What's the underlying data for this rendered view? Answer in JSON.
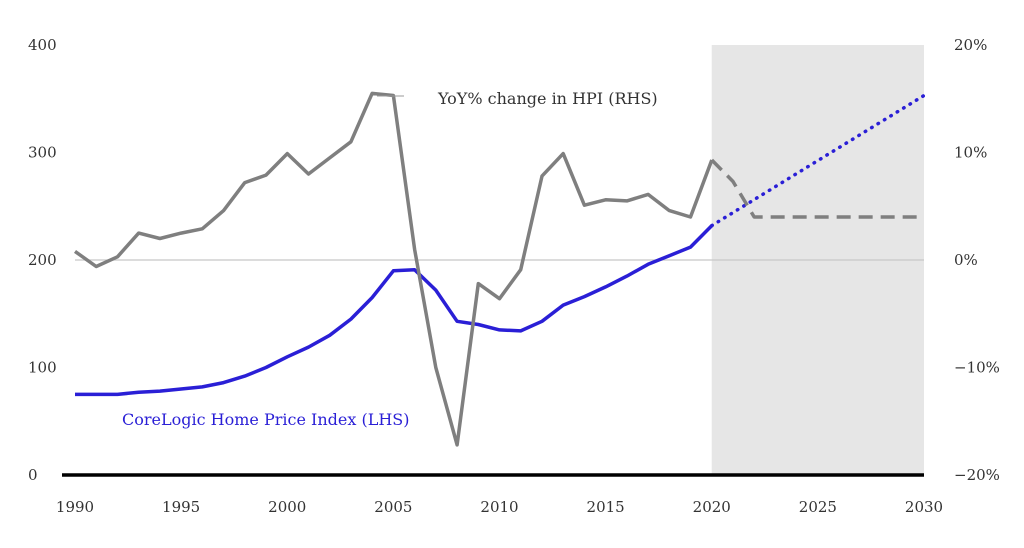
{
  "chart_data": {
    "type": "line",
    "title": "",
    "xlabel": "",
    "ylabel": "",
    "xlim": [
      1990,
      2030
    ],
    "xticks": [
      1990,
      1995,
      2000,
      2005,
      2010,
      2015,
      2020,
      2025,
      2030
    ],
    "xtick_labels": [
      "1990",
      "1995",
      "2000",
      "2005",
      "2010",
      "2015",
      "2020",
      "2025",
      "2030"
    ],
    "left_axis": {
      "ylim": [
        0,
        400
      ],
      "ticks": [
        0,
        100,
        200,
        300,
        400
      ],
      "tick_labels": [
        "0",
        "100",
        "200",
        "300",
        "400"
      ]
    },
    "right_axis": {
      "ylim": [
        -20,
        20
      ],
      "ticks": [
        -20,
        -10,
        0,
        10,
        20
      ],
      "tick_labels": [
        "−20%",
        "−10%",
        "0%",
        "10%",
        "20%"
      ]
    },
    "forecast_region": [
      2020,
      2030
    ],
    "grid": false,
    "zero_line_right_axis": 0,
    "colors": {
      "hpi": "#2a1fd6",
      "yoy": "#7f7f7f",
      "forecast_band": "#e6e6e6",
      "baseline": "#000000",
      "zero_line": "#c8c8c8"
    },
    "series": [
      {
        "name": "CoreLogic Home Price Index (LHS)",
        "axis": "left",
        "style": "solid",
        "x": [
          1990,
          1991,
          1992,
          1993,
          1994,
          1995,
          1996,
          1997,
          1998,
          1999,
          2000,
          2001,
          2002,
          2003,
          2004,
          2005,
          2006,
          2007,
          2008,
          2009,
          2010,
          2011,
          2012,
          2013,
          2014,
          2015,
          2016,
          2017,
          2018,
          2019,
          2020
        ],
        "values": [
          75,
          75,
          75,
          77,
          78,
          80,
          82,
          86,
          92,
          100,
          110,
          119,
          130,
          145,
          165,
          190,
          191,
          172,
          143,
          140,
          135,
          134,
          143,
          158,
          166,
          175,
          185,
          196,
          204,
          212,
          232
        ]
      },
      {
        "name": "CoreLogic Home Price Index (LHS) forecast",
        "axis": "left",
        "style": "dotted",
        "x": [
          2020,
          2030
        ],
        "values": [
          232,
          353
        ]
      },
      {
        "name": "YoY% change in HPI (RHS)",
        "axis": "right",
        "style": "solid",
        "x": [
          1990,
          1991,
          1992,
          1993,
          1994,
          1995,
          1996,
          1997,
          1998,
          1999,
          2000,
          2001,
          2002,
          2003,
          2004,
          2005,
          2006,
          2007,
          2008,
          2009,
          2010,
          2011,
          2012,
          2013,
          2014,
          2015,
          2016,
          2017,
          2018,
          2019,
          2020
        ],
        "values": [
          0.8,
          -0.6,
          0.3,
          2.5,
          2.0,
          2.5,
          2.9,
          4.6,
          7.2,
          7.9,
          9.9,
          8.0,
          9.5,
          11.0,
          15.5,
          15.3,
          1.0,
          -10.0,
          -17.2,
          -2.2,
          -3.6,
          -0.9,
          7.8,
          9.9,
          5.1,
          5.6,
          5.5,
          6.1,
          4.6,
          4.0,
          9.3
        ]
      },
      {
        "name": "YoY% change in HPI (RHS) forecast",
        "axis": "right",
        "style": "dashed",
        "x": [
          2020,
          2021,
          2022,
          2023,
          2030
        ],
        "values": [
          9.3,
          7.3,
          4.0,
          4.0,
          4.0
        ]
      }
    ],
    "annotations": [
      {
        "text": "YoY% change in HPI (RHS)",
        "series": "yoy"
      },
      {
        "text": "CoreLogic Home Price Index (LHS)",
        "series": "hpi"
      }
    ]
  }
}
